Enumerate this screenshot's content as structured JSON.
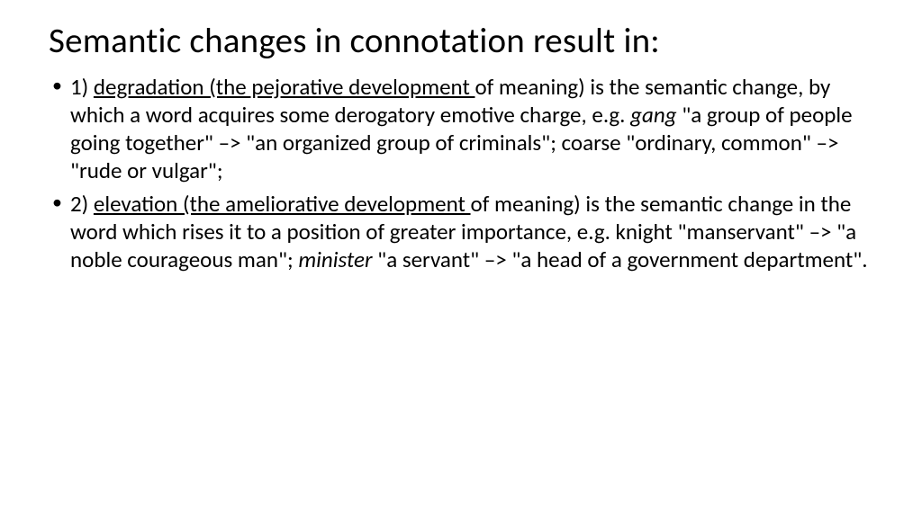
{
  "slide": {
    "title": "Semantic changes in connotation result in:",
    "title_fontsize": 39,
    "body_fontsize": 25,
    "background_color": "#ffffff",
    "text_color": "#000000",
    "bullets": [
      {
        "lead_plain": "1) ",
        "underlined": "degradation (the pejorative development ",
        "after_underline": "of meaning) is the semantic change, by which a word acquires some derogatory emotive charge, e.g. ",
        "italic1": "gang",
        "post_italic1": " \"a group of people going together\" –> \"an organized group of criminals\"; coarse \"ordinary, common\" –> \"rude or vulgar\";"
      },
      {
        "lead_plain": "2) ",
        "underlined": "elevation (the ameliorative development ",
        "after_underline": "of meaning) is the semantic change in the word which rises it to a position of greater importance, e.g. knight \"manservant\" –> \"a noble courageous man\"; ",
        "italic1": "minister",
        "post_italic1": " \"a servant\" –> \"a head of a government department\"."
      }
    ]
  }
}
